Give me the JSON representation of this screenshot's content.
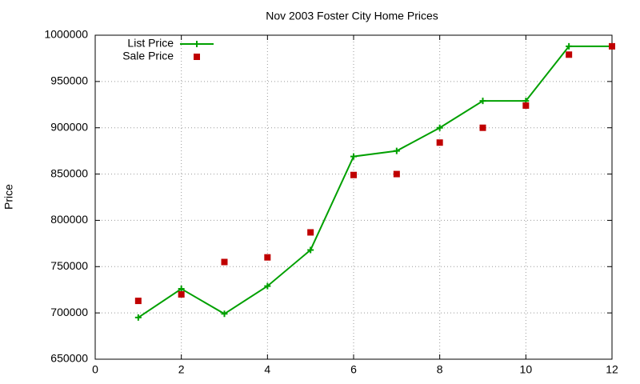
{
  "chart_data": {
    "type": "line",
    "title": "Nov 2003 Foster City Home Prices",
    "y_label": "Price",
    "x": [
      1,
      2,
      3,
      4,
      5,
      6,
      7,
      8,
      9,
      10,
      11,
      12
    ],
    "series": [
      {
        "name": "List Price",
        "color": "#00a000",
        "style": "linespoints",
        "values": [
          695000,
          726000,
          699000,
          729000,
          768000,
          869000,
          875000,
          900000,
          929000,
          929000,
          988000,
          988000
        ]
      },
      {
        "name": "Sale Price",
        "color": "#c00000",
        "style": "points",
        "values": [
          713000,
          720000,
          755000,
          760000,
          787000,
          849000,
          850000,
          884000,
          900000,
          924000,
          979000,
          988000
        ]
      }
    ],
    "xlim": [
      0,
      12
    ],
    "xticks": [
      0,
      2,
      4,
      6,
      8,
      10,
      12
    ],
    "ylim": [
      650000,
      1000000
    ],
    "yticks": [
      650000,
      700000,
      750000,
      800000,
      850000,
      900000,
      950000,
      1000000
    ],
    "grid": true,
    "legend": "top-left"
  }
}
